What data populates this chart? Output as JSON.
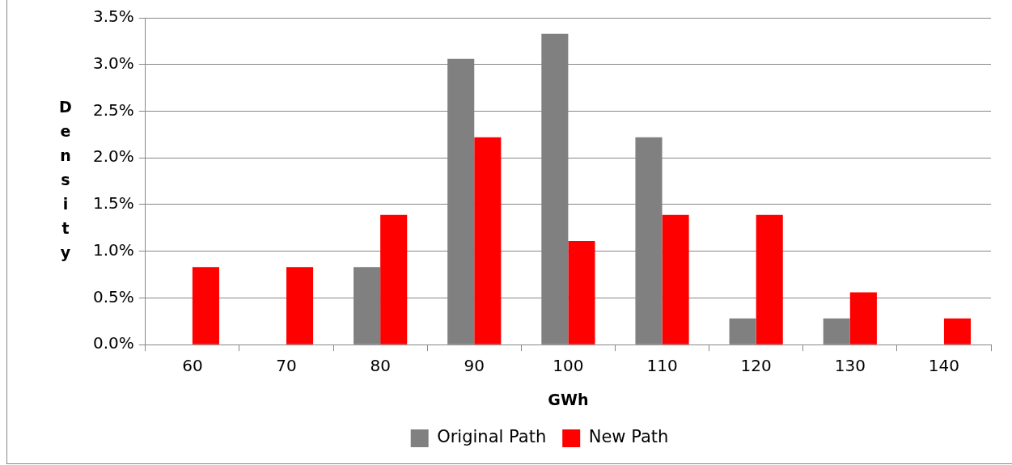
{
  "chart_data": {
    "type": "bar",
    "xlabel": "GWh",
    "ylabel": "Density",
    "categories": [
      "60",
      "70",
      "80",
      "90",
      "100",
      "110",
      "120",
      "130",
      "140"
    ],
    "series": [
      {
        "name": "Original Path",
        "color": "#808080",
        "values": [
          0,
          0,
          0.83,
          3.06,
          3.33,
          2.22,
          0.28,
          0.28,
          0
        ]
      },
      {
        "name": "New Path",
        "color": "#ff0000",
        "values": [
          0.83,
          0.83,
          1.39,
          2.22,
          1.11,
          1.39,
          1.39,
          0.56,
          0.28
        ]
      }
    ],
    "ylim": [
      0,
      3.5
    ],
    "yticks": [
      {
        "value": 0,
        "label": "0.0%"
      },
      {
        "value": 0.5,
        "label": "0.5%"
      },
      {
        "value": 1,
        "label": "1.0%"
      },
      {
        "value": 1.5,
        "label": "1.5%"
      },
      {
        "value": 2,
        "label": "2.0%"
      },
      {
        "value": 2.5,
        "label": "2.5%"
      },
      {
        "value": 3,
        "label": "3.0%"
      },
      {
        "value": 3.5,
        "label": "3.5%"
      }
    ],
    "grid": "y",
    "legend": "bottom"
  }
}
